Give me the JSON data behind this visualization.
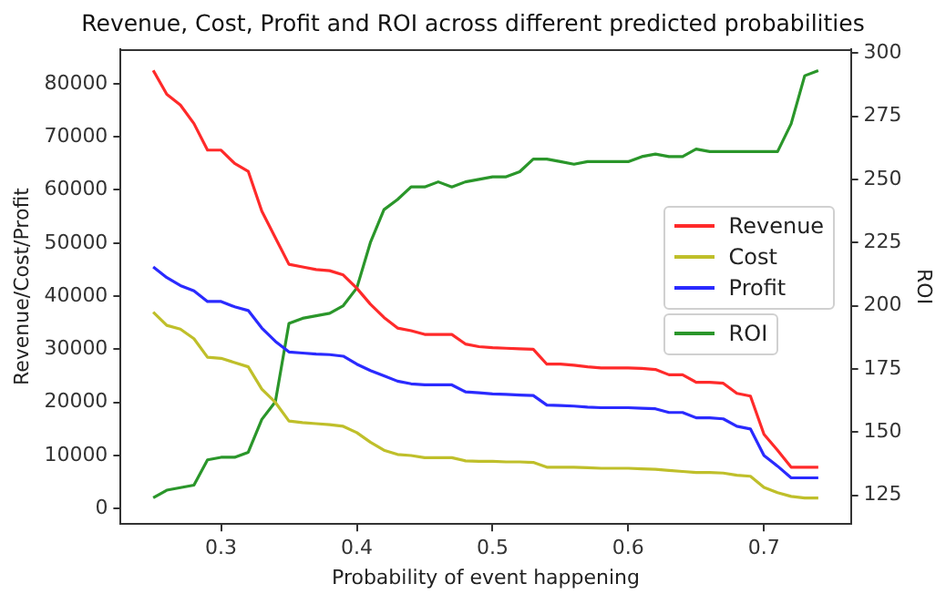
{
  "chart_data": {
    "type": "line",
    "title": "Revenue, Cost, Profit and ROI across different predicted probabilities",
    "xlabel": "Probability of event happening",
    "ylabel": "Revenue/Cost/Profit",
    "y2label": "ROI",
    "x": [
      0.25,
      0.26,
      0.27,
      0.28,
      0.29,
      0.3,
      0.31,
      0.32,
      0.33,
      0.34,
      0.35,
      0.36,
      0.37,
      0.38,
      0.39,
      0.4,
      0.41,
      0.42,
      0.43,
      0.44,
      0.45,
      0.46,
      0.47,
      0.48,
      0.49,
      0.5,
      0.51,
      0.52,
      0.53,
      0.54,
      0.55,
      0.56,
      0.57,
      0.58,
      0.59,
      0.6,
      0.61,
      0.62,
      0.63,
      0.64,
      0.65,
      0.66,
      0.67,
      0.68,
      0.69,
      0.7,
      0.71,
      0.72,
      0.73,
      0.74
    ],
    "xlim": [
      0.226,
      0.764
    ],
    "xticks": [
      0.3,
      0.4,
      0.5,
      0.6,
      0.7
    ],
    "ylim": [
      -2900,
      86500
    ],
    "yticks": [
      0,
      10000,
      20000,
      30000,
      40000,
      50000,
      60000,
      70000,
      80000
    ],
    "y2lim": [
      113.6,
      301.5
    ],
    "y2ticks": [
      125,
      150,
      175,
      200,
      225,
      250,
      275,
      300
    ],
    "legend": "right",
    "grid": false,
    "marker": "none",
    "line_style": "solid",
    "series": [
      {
        "name": "Revenue",
        "color": "#ff2a2a",
        "values": [
          82500,
          78000,
          76000,
          72500,
          67500,
          67500,
          65000,
          63500,
          56000,
          51000,
          46000,
          45500,
          45000,
          44800,
          44000,
          41500,
          38500,
          36000,
          34000,
          33500,
          32800,
          32800,
          32800,
          31000,
          30500,
          30300,
          30200,
          30100,
          30000,
          27200,
          27200,
          27000,
          26700,
          26500,
          26500,
          26500,
          26400,
          26200,
          25200,
          25200,
          23800,
          23800,
          23600,
          21700,
          21200,
          14000,
          11000,
          7800,
          7800,
          7800
        ]
      },
      {
        "name": "Cost",
        "color": "#bfbf2a",
        "values": [
          37000,
          34500,
          33800,
          32000,
          28500,
          28300,
          27500,
          26700,
          22500,
          20000,
          16500,
          16200,
          16000,
          15800,
          15500,
          14300,
          12500,
          11000,
          10200,
          10000,
          9600,
          9600,
          9600,
          9000,
          8900,
          8900,
          8800,
          8800,
          8700,
          7800,
          7800,
          7800,
          7700,
          7600,
          7600,
          7600,
          7500,
          7400,
          7200,
          7000,
          6800,
          6800,
          6700,
          6300,
          6100,
          4000,
          3000,
          2300,
          2000,
          2000
        ]
      },
      {
        "name": "Profit",
        "color": "#2a2aff",
        "values": [
          45500,
          43500,
          42000,
          41000,
          39000,
          39000,
          38000,
          37300,
          34000,
          31500,
          29500,
          29300,
          29100,
          29000,
          28700,
          27200,
          26000,
          25000,
          24000,
          23500,
          23300,
          23300,
          23300,
          22000,
          21800,
          21600,
          21500,
          21400,
          21300,
          19500,
          19400,
          19300,
          19100,
          19000,
          19000,
          19000,
          18900,
          18800,
          18100,
          18100,
          17100,
          17100,
          16900,
          15500,
          15000,
          10000,
          8000,
          5800,
          5800,
          5800
        ]
      },
      {
        "name": "ROI",
        "color": "#2a962a",
        "axis": "y2",
        "values": [
          124,
          127,
          128,
          129,
          139,
          140,
          140,
          142,
          155,
          162,
          193,
          195,
          196,
          197,
          200,
          207,
          225,
          238,
          242,
          247,
          247,
          249,
          247,
          249,
          250,
          251,
          251,
          253,
          258,
          258,
          257,
          256,
          257,
          257,
          257,
          257,
          259,
          260,
          259,
          259,
          262,
          261,
          261,
          261,
          261,
          261,
          261,
          272,
          291,
          293
        ]
      }
    ]
  }
}
